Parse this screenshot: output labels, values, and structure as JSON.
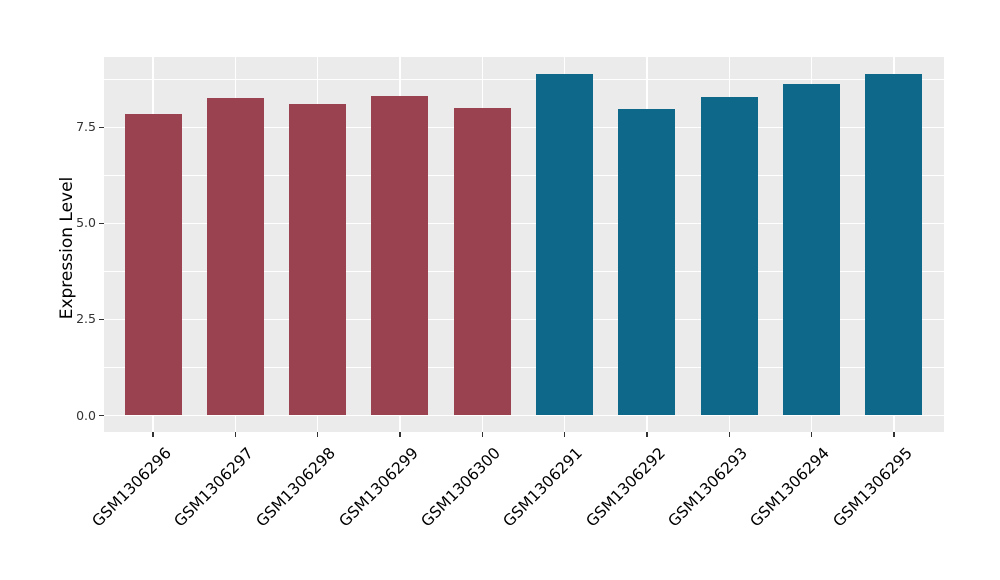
{
  "figure": {
    "background": "#FFFFFF",
    "panel_background": "#EBEBEB",
    "grid_color": "#FFFFFF",
    "tick_color": "#333333",
    "tick_label_color": "#333333",
    "axis_title_color": "#000000"
  },
  "chart_data": {
    "type": "bar",
    "title": "",
    "xlabel": "",
    "ylabel": "Expression Level",
    "categories": [
      "GSM1306296",
      "GSM1306297",
      "GSM1306298",
      "GSM1306299",
      "GSM1306300",
      "GSM1306291",
      "GSM1306292",
      "GSM1306293",
      "GSM1306294",
      "GSM1306295"
    ],
    "values": [
      7.85,
      8.26,
      8.1,
      8.32,
      8.01,
      8.89,
      7.97,
      8.28,
      8.62,
      8.9
    ],
    "bar_colors": [
      "#9A4250",
      "#9A4250",
      "#9A4250",
      "#9A4250",
      "#9A4250",
      "#0E688A",
      "#0E688A",
      "#0E688A",
      "#0E688A",
      "#0E688A"
    ],
    "ylim": [
      -0.43,
      9.33
    ],
    "yticks": [
      0.0,
      2.5,
      5.0,
      7.5
    ],
    "ytick_labels": [
      "0.0",
      "2.5",
      "5.0",
      "7.5"
    ],
    "yminor_ticks": [
      1.25,
      3.75,
      6.25,
      8.75
    ],
    "x_tick_rotation_deg": 45,
    "legend": "none",
    "grid": "white major and minor gridlines on gray panel"
  }
}
